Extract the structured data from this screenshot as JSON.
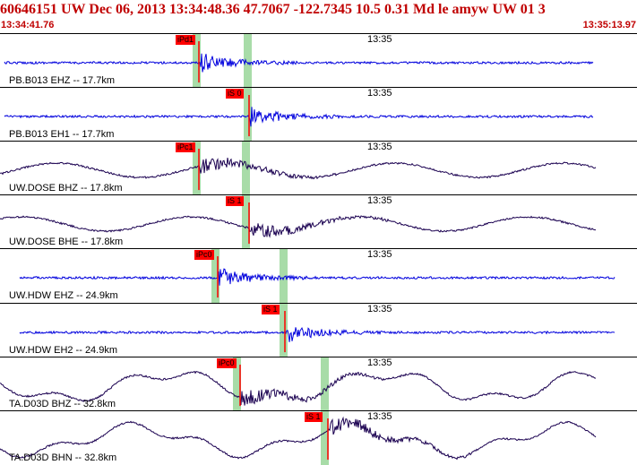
{
  "header": {
    "title": "60646151 UW Dec 06, 2013 13:34:48.36    47.7067 -122.7345 10.5 0.31 Md le amyw UW 01    3",
    "time_start": "13:34:41.76",
    "time_end": "13:35:13.97"
  },
  "colors": {
    "title": "#c00000",
    "trace_blue": "#0000dd",
    "trace_dark": "#1a0050",
    "pick": "#ff0000",
    "window": "#a8dca8"
  },
  "panels": [
    {
      "label": "PB.B013 EHZ -- 17.7km",
      "minute": "13:35",
      "pick": "iPd1",
      "color": "blue",
      "win": 219,
      "pickx": 222,
      "win2": 276
    },
    {
      "label": "PB.B013 EH1 -- 17.7km",
      "minute": "13:35",
      "pick": "iS 0",
      "color": "blue",
      "win": 276,
      "pickx": 278,
      "win2": null
    },
    {
      "label": "UW.DOSE BHZ -- 17.8km",
      "minute": "13:35",
      "pick": "iPc1",
      "color": "dark",
      "win": 219,
      "pickx": 222,
      "win2": 274
    },
    {
      "label": "UW.DOSE BHE -- 17.8km",
      "minute": "13:35",
      "pick": "iS 1",
      "color": "dark",
      "win": 274,
      "pickx": 278,
      "win2": null
    },
    {
      "label": "UW.HDW EHZ -- 24.9km",
      "minute": "13:35",
      "pick": "iPc0",
      "color": "blue",
      "win": 240,
      "pickx": 243,
      "win2": 316
    },
    {
      "label": "UW.HDW EH2 -- 24.9km",
      "minute": "13:35",
      "pick": "iS 1",
      "color": "blue",
      "win": 316,
      "pickx": 318,
      "win2": null
    },
    {
      "label": "TA.D03D BHZ -- 32.8km",
      "minute": "13:35",
      "pick": "iPc0",
      "color": "dark",
      "win": 264,
      "pickx": 268,
      "win2": 362
    },
    {
      "label": "TA.D03D BHN -- 32.8km",
      "minute": "13:35",
      "pick": "iS 1",
      "color": "dark",
      "win": 362,
      "pickx": 366,
      "win2": null
    }
  ]
}
